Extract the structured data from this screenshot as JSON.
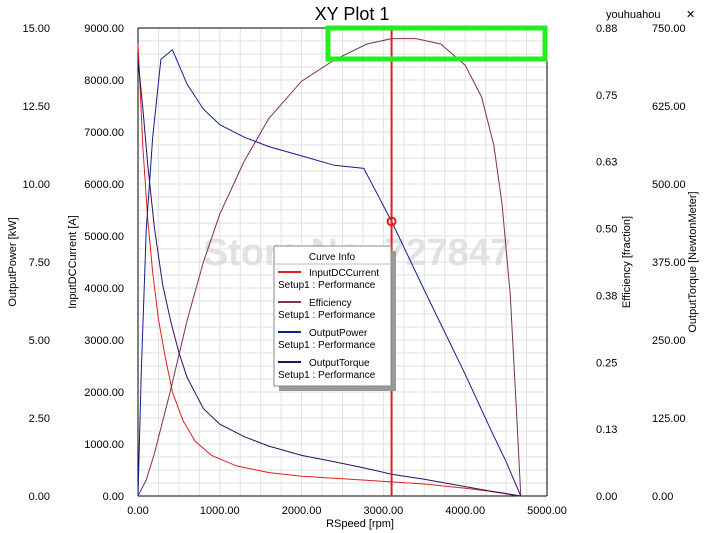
{
  "window": {
    "user": "youhuahou",
    "close_glyph": "✕"
  },
  "watermark": "Store No: 727847",
  "chart_data": {
    "type": "line",
    "title": "XY Plot 1",
    "xlabel": "RSpeed [rpm]",
    "xlim": [
      0,
      5000
    ],
    "x_ticks": [
      "0.00",
      "1000.00",
      "2000.00",
      "3000.00",
      "4000.00",
      "5000.00"
    ],
    "y_axes": [
      {
        "label": "OutputPower [kW]",
        "side": "left-outer",
        "lim": [
          0,
          15
        ],
        "ticks": [
          "0.00",
          "2.50",
          "5.00",
          "7.50",
          "10.00",
          "12.50",
          "15.00"
        ]
      },
      {
        "label": "InputDCCurrent [A]",
        "side": "left-inner",
        "lim": [
          0,
          9000
        ],
        "ticks": [
          "0.00",
          "1000.00",
          "2000.00",
          "3000.00",
          "4000.00",
          "5000.00",
          "6000.00",
          "7000.00",
          "8000.00",
          "9000.00"
        ]
      },
      {
        "label": "Efficiency [fraction]",
        "side": "right-inner",
        "lim": [
          0,
          0.88
        ],
        "ticks": [
          "0.00",
          "0.13",
          "0.25",
          "0.38",
          "0.50",
          "0.63",
          "0.75",
          "0.88"
        ]
      },
      {
        "label": "OutputTorque [NewtonMeter]",
        "side": "right-outer",
        "lim": [
          0,
          750
        ],
        "ticks": [
          "0.00",
          "125.00",
          "250.00",
          "375.00",
          "500.00",
          "625.00",
          "750.00"
        ]
      }
    ],
    "grid": true,
    "legend": {
      "title": "Curve Info",
      "placement": "center",
      "entries": [
        {
          "name": "InputDCCurrent",
          "sub": "Setup1 : Performance",
          "color": "#e02020"
        },
        {
          "name": "Efficiency",
          "sub": "Setup1 : Performance",
          "color": "#803050"
        },
        {
          "name": "OutputPower",
          "sub": "Setup1 : Performance",
          "color": "#102090"
        },
        {
          "name": "OutputTorque",
          "sub": "Setup1 : Performance",
          "color": "#2a1060"
        }
      ]
    },
    "series": [
      {
        "name": "InputDCCurrent",
        "axis": 1,
        "color": "#e02020",
        "x": [
          0,
          60,
          120,
          180,
          250,
          330,
          420,
          550,
          700,
          900,
          1200,
          1600,
          2000,
          2500,
          3000,
          3500,
          4000,
          4300,
          4500,
          4600,
          4680
        ],
        "y": [
          8700,
          6700,
          5300,
          4300,
          3400,
          2700,
          2000,
          1450,
          1050,
          780,
          580,
          450,
          380,
          330,
          280,
          230,
          150,
          90,
          40,
          15,
          0
        ]
      },
      {
        "name": "Efficiency",
        "axis": 2,
        "color": "#803050",
        "x": [
          0,
          100,
          200,
          400,
          600,
          800,
          1000,
          1300,
          1600,
          2000,
          2400,
          2800,
          3100,
          3400,
          3700,
          4000,
          4200,
          4350,
          4450,
          4550,
          4620,
          4680
        ],
        "y": [
          0,
          0.03,
          0.08,
          0.2,
          0.33,
          0.44,
          0.53,
          0.63,
          0.71,
          0.78,
          0.82,
          0.85,
          0.86,
          0.86,
          0.85,
          0.81,
          0.75,
          0.66,
          0.55,
          0.38,
          0.18,
          0
        ]
      },
      {
        "name": "OutputPower",
        "axis": 0,
        "color": "#102090",
        "x": [
          0,
          40,
          100,
          180,
          280,
          420,
          600,
          800,
          1000,
          1300,
          1600,
          2000,
          2400,
          2760,
          3100,
          3500,
          4000,
          4300,
          4500,
          4680
        ],
        "y": [
          0,
          4,
          8.5,
          11.5,
          14,
          14.3,
          13.2,
          12.4,
          11.9,
          11.5,
          11.2,
          10.9,
          10.6,
          10.5,
          8.8,
          6.6,
          3.9,
          2.2,
          1.1,
          0
        ]
      },
      {
        "name": "OutputTorque",
        "axis": 3,
        "color": "#2a1060",
        "x": [
          0,
          60,
          120,
          200,
          300,
          400,
          500,
          600,
          800,
          1000,
          1300,
          1600,
          2000,
          2400,
          2760,
          3100,
          3500,
          4000,
          4300,
          4500,
          4680
        ],
        "y": [
          700,
          620,
          530,
          430,
          340,
          280,
          230,
          190,
          140,
          115,
          95,
          80,
          65,
          55,
          45,
          35,
          27,
          15,
          8,
          4,
          0
        ]
      }
    ],
    "marker": {
      "x": 3100,
      "y_power": 8.8,
      "color": "#e02020"
    }
  }
}
